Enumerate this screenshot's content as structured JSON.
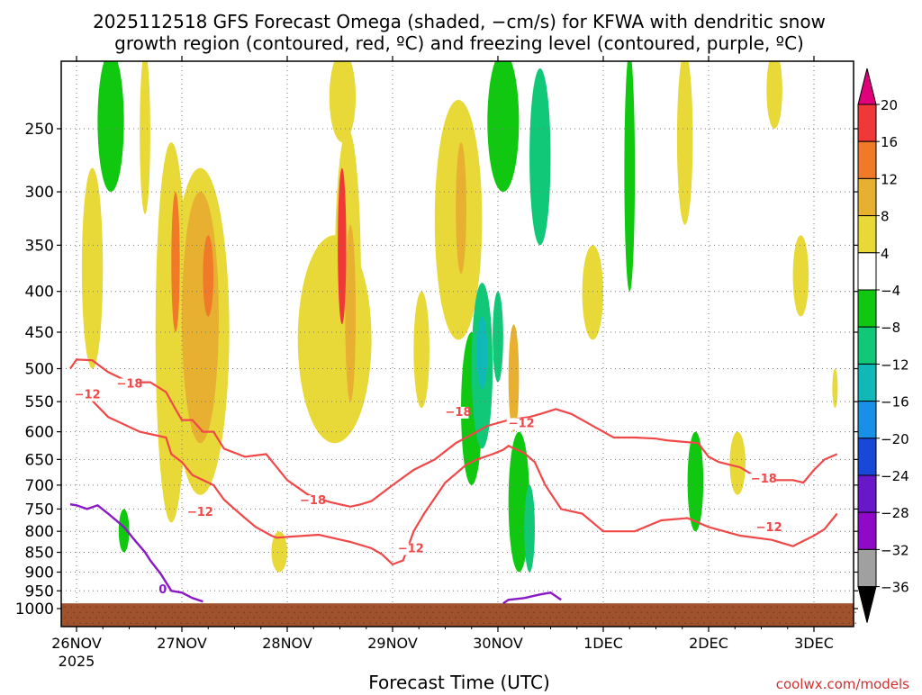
{
  "chart_data": {
    "type": "heatmap",
    "title_line1": "2025112518 GFS Forecast Omega (shaded, −cm/s) for KFWA with dendritic snow",
    "title_line2": "growth region (contoured, red, ºC) and freezing level (contoured, purple, ºC)",
    "xlabel": "Forecast Time (UTC)",
    "ylabel": "",
    "credit": "coolwx.com/models",
    "x_ticks": [
      "26NOV",
      "27NOV",
      "28NOV",
      "29NOV",
      "30NOV",
      "1DEC",
      "2DEC",
      "3DEC"
    ],
    "x_tick_days": [
      0,
      1,
      2,
      3,
      4,
      5,
      6,
      7
    ],
    "x_year_label": "2025",
    "x_range_days": [
      -0.06,
      7.22
    ],
    "y_ticks": [
      250,
      300,
      350,
      400,
      450,
      500,
      550,
      600,
      650,
      700,
      750,
      800,
      850,
      900,
      950,
      1000
    ],
    "y_range_hpa": [
      200,
      1050
    ],
    "y_scale": "pressure-axis (decreasing upward)",
    "grid": true,
    "colorbar": {
      "labels": [
        "20",
        "16",
        "12",
        "8",
        "4",
        "−4",
        "−8",
        "−12",
        "−16",
        "−20",
        "−24",
        "−28",
        "−32",
        "−36"
      ],
      "colors": [
        "#e0007a",
        "#f03838",
        "#f07a28",
        "#e8b030",
        "#e8d838",
        "#ffffff",
        "#10c810",
        "#10c878",
        "#10b8b8",
        "#1890e8",
        "#1848d8",
        "#6818c8",
        "#9008c8",
        "#a0a0a0",
        "#000000"
      ]
    },
    "contour_labels": {
      "dgz": [
        "−18",
        "−12",
        "−18",
        "−12",
        "−18",
        "−12",
        "−12",
        "−18",
        "−12"
      ],
      "freezing": [
        "0"
      ]
    },
    "series": [
      {
        "name": "−18",
        "kind": "dgz",
        "color": "#f04848",
        "points": [
          [
            -0.06,
            500
          ],
          [
            0.0,
            487
          ],
          [
            0.15,
            488
          ],
          [
            0.3,
            505
          ],
          [
            0.5,
            520
          ],
          [
            0.7,
            520
          ],
          [
            0.85,
            535
          ],
          [
            0.95,
            565
          ],
          [
            1.0,
            580
          ],
          [
            1.1,
            580
          ],
          [
            1.2,
            600
          ],
          [
            1.3,
            600
          ],
          [
            1.4,
            630
          ],
          [
            1.6,
            645
          ],
          [
            1.8,
            640
          ],
          [
            2.0,
            690
          ],
          [
            2.2,
            720
          ],
          [
            2.4,
            735
          ],
          [
            2.6,
            745
          ],
          [
            2.7,
            740
          ],
          [
            2.8,
            733
          ],
          [
            3.0,
            700
          ],
          [
            3.2,
            670
          ],
          [
            3.4,
            650
          ],
          [
            3.6,
            620
          ],
          [
            3.8,
            600
          ],
          [
            3.9,
            590
          ],
          [
            4.1,
            580
          ],
          [
            4.3,
            575
          ],
          [
            4.4,
            570
          ],
          [
            4.55,
            562
          ],
          [
            4.7,
            570
          ],
          [
            4.9,
            590
          ],
          [
            5.05,
            605
          ],
          [
            5.1,
            610
          ],
          [
            5.3,
            610
          ],
          [
            5.5,
            612
          ],
          [
            5.6,
            615
          ],
          [
            5.9,
            620
          ],
          [
            6.0,
            645
          ],
          [
            6.1,
            655
          ],
          [
            6.3,
            665
          ],
          [
            6.5,
            690
          ],
          [
            6.8,
            690
          ],
          [
            6.9,
            695
          ],
          [
            7.0,
            670
          ],
          [
            7.1,
            650
          ],
          [
            7.22,
            640
          ]
        ]
      },
      {
        "name": "−12",
        "kind": "dgz",
        "color": "#f04848",
        "points": [
          [
            0.0,
            540
          ],
          [
            0.1,
            540
          ],
          [
            0.3,
            575
          ],
          [
            0.6,
            600
          ],
          [
            0.85,
            610
          ],
          [
            0.9,
            640
          ],
          [
            1.0,
            655
          ],
          [
            1.1,
            680
          ],
          [
            1.2,
            690
          ],
          [
            1.3,
            700
          ],
          [
            1.4,
            730
          ],
          [
            1.5,
            750
          ],
          [
            1.6,
            770
          ],
          [
            1.7,
            790
          ],
          [
            1.85,
            810
          ],
          [
            1.9,
            815
          ],
          [
            2.0,
            813
          ],
          [
            2.3,
            808
          ],
          [
            2.6,
            825
          ],
          [
            2.8,
            840
          ],
          [
            2.9,
            855
          ],
          [
            3.0,
            880
          ],
          [
            3.1,
            870
          ],
          [
            3.2,
            800
          ],
          [
            3.3,
            760
          ],
          [
            3.5,
            695
          ],
          [
            3.7,
            660
          ],
          [
            3.8,
            650
          ],
          [
            3.95,
            640
          ],
          [
            4.05,
            632
          ],
          [
            4.1,
            625
          ],
          [
            4.25,
            638
          ],
          [
            4.35,
            655
          ],
          [
            4.45,
            700
          ],
          [
            4.6,
            750
          ],
          [
            4.8,
            760
          ],
          [
            5.0,
            800
          ],
          [
            5.3,
            800
          ],
          [
            5.55,
            775
          ],
          [
            5.8,
            770
          ],
          [
            6.0,
            790
          ],
          [
            6.3,
            810
          ],
          [
            6.6,
            820
          ],
          [
            6.8,
            835
          ],
          [
            7.0,
            810
          ],
          [
            7.1,
            795
          ],
          [
            7.15,
            780
          ],
          [
            7.22,
            760
          ]
        ]
      },
      {
        "name": "0",
        "kind": "freezing",
        "color": "#8a18c8",
        "points": [
          [
            -0.06,
            740
          ],
          [
            0.0,
            742
          ],
          [
            0.1,
            750
          ],
          [
            0.2,
            742
          ],
          [
            0.3,
            760
          ],
          [
            0.45,
            790
          ],
          [
            0.55,
            820
          ],
          [
            0.65,
            850
          ],
          [
            0.7,
            870
          ],
          [
            0.8,
            905
          ],
          [
            0.9,
            950
          ],
          [
            1.0,
            955
          ],
          [
            1.1,
            970
          ],
          [
            1.2,
            980
          ]
        ]
      },
      {
        "name": "0",
        "kind": "freezing",
        "color": "#8a18c8",
        "points": [
          [
            4.05,
            985
          ],
          [
            4.1,
            975
          ],
          [
            4.25,
            970
          ],
          [
            4.4,
            960
          ],
          [
            4.5,
            955
          ],
          [
            4.6,
            975
          ]
        ]
      }
    ],
    "omega_features": [
      {
        "x": [
          0.75,
          1.05
        ],
        "y": [
          260,
          780
        ],
        "value": 4
      },
      {
        "x": [
          0.9,
          1.45
        ],
        "y": [
          280,
          720
        ],
        "value": 4
      },
      {
        "x": [
          1.0,
          1.35
        ],
        "y": [
          300,
          620
        ],
        "value": 8
      },
      {
        "x": [
          0.9,
          0.98
        ],
        "y": [
          300,
          450
        ],
        "value": 12
      },
      {
        "x": [
          1.2,
          1.3
        ],
        "y": [
          340,
          430
        ],
        "value": 12
      },
      {
        "x": [
          0.05,
          0.25
        ],
        "y": [
          280,
          500
        ],
        "value": 4
      },
      {
        "x": [
          0.6,
          0.7
        ],
        "y": [
          200,
          320
        ],
        "value": 4
      },
      {
        "x": [
          1.85,
          2.0
        ],
        "y": [
          800,
          900
        ],
        "value": 4
      },
      {
        "x": [
          2.1,
          2.8
        ],
        "y": [
          340,
          620
        ],
        "value": 4
      },
      {
        "x": [
          2.4,
          2.65
        ],
        "y": [
          200,
          260
        ],
        "value": 4
      },
      {
        "x": [
          2.45,
          2.7
        ],
        "y": [
          250,
          600
        ],
        "value": 4
      },
      {
        "x": [
          2.55,
          2.65
        ],
        "y": [
          330,
          550
        ],
        "value": 8
      },
      {
        "x": [
          2.48,
          2.56
        ],
        "y": [
          280,
          440
        ],
        "value": 16
      },
      {
        "x": [
          3.2,
          3.35
        ],
        "y": [
          400,
          560
        ],
        "value": 4
      },
      {
        "x": [
          3.4,
          3.85
        ],
        "y": [
          230,
          460
        ],
        "value": 4
      },
      {
        "x": [
          3.6,
          3.7
        ],
        "y": [
          260,
          380
        ],
        "value": 8
      },
      {
        "x": [
          4.1,
          4.2
        ],
        "y": [
          440,
          600
        ],
        "value": 8
      },
      {
        "x": [
          5.7,
          5.85
        ],
        "y": [
          200,
          330
        ],
        "value": 4
      },
      {
        "x": [
          6.2,
          6.35
        ],
        "y": [
          600,
          720
        ],
        "value": 4
      },
      {
        "x": [
          6.55,
          6.7
        ],
        "y": [
          200,
          250
        ],
        "value": 4
      },
      {
        "x": [
          6.8,
          6.95
        ],
        "y": [
          340,
          430
        ],
        "value": 4
      },
      {
        "x": [
          7.18,
          7.22
        ],
        "y": [
          500,
          560
        ],
        "value": 4
      },
      {
        "x": [
          4.8,
          5.0
        ],
        "y": [
          350,
          460
        ],
        "value": 4
      },
      {
        "x": [
          3.65,
          3.85
        ],
        "y": [
          450,
          700
        ],
        "value": -4
      },
      {
        "x": [
          3.75,
          3.95
        ],
        "y": [
          390,
          630
        ],
        "value": -8
      },
      {
        "x": [
          3.8,
          3.9
        ],
        "y": [
          430,
          530
        ],
        "value": -12
      },
      {
        "x": [
          3.9,
          4.2
        ],
        "y": [
          200,
          300
        ],
        "value": -4
      },
      {
        "x": [
          4.1,
          4.3
        ],
        "y": [
          600,
          900
        ],
        "value": -4
      },
      {
        "x": [
          4.25,
          4.35
        ],
        "y": [
          700,
          900
        ],
        "value": -8
      },
      {
        "x": [
          5.2,
          5.3
        ],
        "y": [
          200,
          400
        ],
        "value": -4
      },
      {
        "x": [
          5.8,
          5.95
        ],
        "y": [
          600,
          800
        ],
        "value": -4
      },
      {
        "x": [
          0.2,
          0.45
        ],
        "y": [
          200,
          300
        ],
        "value": -4
      },
      {
        "x": [
          0.4,
          0.5
        ],
        "y": [
          750,
          850
        ],
        "value": -4
      },
      {
        "x": [
          4.3,
          4.5
        ],
        "y": [
          210,
          350
        ],
        "value": -8
      },
      {
        "x": [
          3.95,
          4.05
        ],
        "y": [
          400,
          520
        ],
        "value": -8
      }
    ]
  }
}
